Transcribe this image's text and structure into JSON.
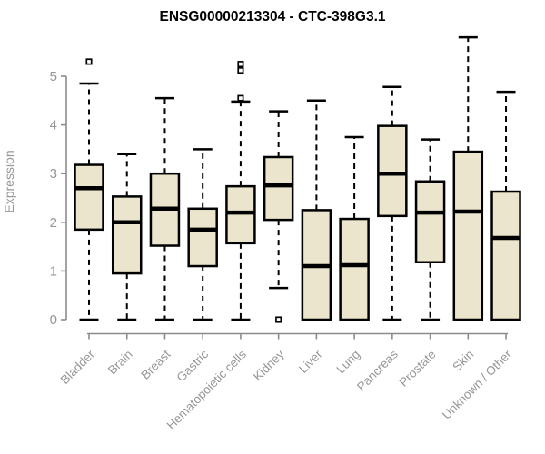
{
  "chart_data": {
    "type": "boxplot",
    "title": "ENSG00000213304 - CTC-398G3.1",
    "xlabel": "",
    "ylabel": "Expression",
    "ylim": [
      0,
      5
    ],
    "yticks": [
      0,
      1,
      2,
      3,
      4,
      5
    ],
    "grid": false,
    "legend": false,
    "box_fill_color": "#ece5cd",
    "box_border_color": "#000000",
    "whisker_color": "#000000",
    "axis_color": "#8c8c8c",
    "label_color": "#979797",
    "title_color": "#000000",
    "categories": [
      "Bladder",
      "Brain",
      "Breast",
      "Gastric",
      "Hematopoietic cells",
      "Kidney",
      "Liver",
      "Lung",
      "Pancreas",
      "Prostate",
      "Skin",
      "Unknown / Other"
    ],
    "series": [
      {
        "category": "Bladder",
        "whisker_low": 0,
        "q1": 1.85,
        "median": 2.7,
        "q3": 3.18,
        "whisker_high": 4.85,
        "outliers": [
          5.3
        ]
      },
      {
        "category": "Brain",
        "whisker_low": 0,
        "q1": 0.95,
        "median": 2.0,
        "q3": 2.53,
        "whisker_high": 3.4,
        "outliers": []
      },
      {
        "category": "Breast",
        "whisker_low": 0,
        "q1": 1.52,
        "median": 2.28,
        "q3": 3.0,
        "whisker_high": 4.55,
        "outliers": []
      },
      {
        "category": "Gastric",
        "whisker_low": 0,
        "q1": 1.1,
        "median": 1.85,
        "q3": 2.28,
        "whisker_high": 3.5,
        "outliers": []
      },
      {
        "category": "Hematopoietic cells",
        "whisker_low": 0,
        "q1": 1.57,
        "median": 2.2,
        "q3": 2.74,
        "whisker_high": 4.48,
        "outliers": [
          4.55,
          5.12,
          5.25
        ]
      },
      {
        "category": "Kidney",
        "whisker_low": 0.65,
        "q1": 2.05,
        "median": 2.76,
        "q3": 3.34,
        "whisker_high": 4.28,
        "outliers": [
          0
        ]
      },
      {
        "category": "Liver",
        "whisker_low": 0,
        "q1": 0,
        "median": 1.1,
        "q3": 2.25,
        "whisker_high": 4.5,
        "outliers": []
      },
      {
        "category": "Lung",
        "whisker_low": 0,
        "q1": 0,
        "median": 1.12,
        "q3": 2.07,
        "whisker_high": 3.75,
        "outliers": []
      },
      {
        "category": "Pancreas",
        "whisker_low": 0,
        "q1": 2.13,
        "median": 3.0,
        "q3": 3.98,
        "whisker_high": 4.78,
        "outliers": []
      },
      {
        "category": "Prostate",
        "whisker_low": 0,
        "q1": 1.18,
        "median": 2.2,
        "q3": 2.84,
        "whisker_high": 3.7,
        "outliers": []
      },
      {
        "category": "Skin",
        "whisker_low": 0,
        "q1": 0,
        "median": 2.22,
        "q3": 3.45,
        "whisker_high": 5.8,
        "outliers": []
      },
      {
        "category": "Unknown / Other",
        "whisker_low": 0,
        "q1": 0,
        "median": 1.68,
        "q3": 2.63,
        "whisker_high": 4.68,
        "outliers": []
      }
    ]
  }
}
